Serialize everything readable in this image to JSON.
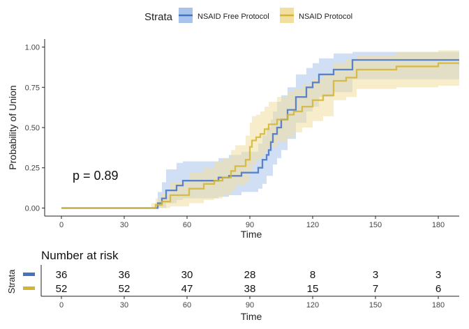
{
  "chart_data": {
    "type": "line",
    "subtype": "kaplan-meier",
    "legend": {
      "title": "Strata",
      "position": "top",
      "entries": [
        "NSAID Free Protocol",
        "NSAID Protocol"
      ]
    },
    "xlabel": "Time",
    "ylabel": "Probability of Union",
    "xlim": [
      -8,
      190
    ],
    "ylim": [
      -0.05,
      1.05
    ],
    "xticks": [
      0,
      30,
      60,
      90,
      120,
      150,
      180
    ],
    "yticks": [
      0.0,
      0.25,
      0.5,
      0.75,
      1.0
    ],
    "ytick_labels": [
      "0.00",
      "0.25",
      "0.50",
      "0.75",
      "1.00"
    ],
    "annotation": "p = 0.89",
    "series": [
      {
        "name": "NSAID Free Protocol",
        "color": "#4472c4",
        "fill": "#a9c4ea",
        "steps": [
          [
            0,
            0
          ],
          [
            46,
            0.03
          ],
          [
            48,
            0.06
          ],
          [
            50,
            0.11
          ],
          [
            55,
            0.14
          ],
          [
            58,
            0.17
          ],
          [
            75,
            0.19
          ],
          [
            80,
            0.2
          ],
          [
            86,
            0.22
          ],
          [
            94,
            0.25
          ],
          [
            96,
            0.3
          ],
          [
            98,
            0.33
          ],
          [
            99,
            0.36
          ],
          [
            100,
            0.41
          ],
          [
            101,
            0.46
          ],
          [
            103,
            0.5
          ],
          [
            105,
            0.55
          ],
          [
            108,
            0.61
          ],
          [
            112,
            0.69
          ],
          [
            117,
            0.75
          ],
          [
            120,
            0.78
          ],
          [
            123,
            0.83
          ],
          [
            130,
            0.86
          ],
          [
            139,
            0.92
          ],
          [
            190,
            0.92
          ]
        ],
        "lower": [
          [
            0,
            0
          ],
          [
            46,
            0
          ],
          [
            50,
            0.03
          ],
          [
            55,
            0.05
          ],
          [
            58,
            0.06
          ],
          [
            70,
            0.06
          ],
          [
            75,
            0.07
          ],
          [
            80,
            0.08
          ],
          [
            86,
            0.1
          ],
          [
            94,
            0.12
          ],
          [
            96,
            0.15
          ],
          [
            98,
            0.2
          ],
          [
            101,
            0.27
          ],
          [
            103,
            0.31
          ],
          [
            105,
            0.36
          ],
          [
            108,
            0.43
          ],
          [
            112,
            0.53
          ],
          [
            117,
            0.6
          ],
          [
            120,
            0.63
          ],
          [
            123,
            0.69
          ],
          [
            130,
            0.72
          ],
          [
            139,
            0.8
          ],
          [
            190,
            0.8
          ]
        ],
        "upper": [
          [
            0,
            0
          ],
          [
            46,
            0.1
          ],
          [
            48,
            0.16
          ],
          [
            50,
            0.24
          ],
          [
            55,
            0.28
          ],
          [
            58,
            0.29
          ],
          [
            75,
            0.31
          ],
          [
            80,
            0.33
          ],
          [
            86,
            0.35
          ],
          [
            94,
            0.4
          ],
          [
            96,
            0.45
          ],
          [
            98,
            0.5
          ],
          [
            100,
            0.55
          ],
          [
            101,
            0.6
          ],
          [
            103,
            0.66
          ],
          [
            105,
            0.7
          ],
          [
            108,
            0.75
          ],
          [
            112,
            0.83
          ],
          [
            117,
            0.87
          ],
          [
            120,
            0.9
          ],
          [
            123,
            0.93
          ],
          [
            130,
            0.96
          ],
          [
            139,
            0.97
          ],
          [
            190,
            0.97
          ]
        ]
      },
      {
        "name": "NSAID Protocol",
        "color": "#d4b531",
        "fill": "#f0dfa0",
        "steps": [
          [
            0,
            0
          ],
          [
            43,
            0.0
          ],
          [
            45,
            0.02
          ],
          [
            48,
            0.04
          ],
          [
            52,
            0.08
          ],
          [
            61,
            0.12
          ],
          [
            68,
            0.15
          ],
          [
            73,
            0.17
          ],
          [
            77,
            0.19
          ],
          [
            81,
            0.23
          ],
          [
            83,
            0.26
          ],
          [
            88,
            0.3
          ],
          [
            90,
            0.38
          ],
          [
            91,
            0.42
          ],
          [
            93,
            0.44
          ],
          [
            95,
            0.46
          ],
          [
            97,
            0.49
          ],
          [
            99,
            0.52
          ],
          [
            103,
            0.55
          ],
          [
            108,
            0.58
          ],
          [
            111,
            0.6
          ],
          [
            115,
            0.63
          ],
          [
            120,
            0.67
          ],
          [
            125,
            0.7
          ],
          [
            130,
            0.79
          ],
          [
            136,
            0.81
          ],
          [
            141,
            0.86
          ],
          [
            160,
            0.88
          ],
          [
            180,
            0.9
          ],
          [
            190,
            0.9
          ]
        ],
        "lower": [
          [
            0,
            0
          ],
          [
            43,
            0
          ],
          [
            52,
            0.01
          ],
          [
            61,
            0.03
          ],
          [
            68,
            0.05
          ],
          [
            73,
            0.06
          ],
          [
            77,
            0.08
          ],
          [
            81,
            0.11
          ],
          [
            83,
            0.14
          ],
          [
            88,
            0.16
          ],
          [
            90,
            0.23
          ],
          [
            91,
            0.27
          ],
          [
            93,
            0.3
          ],
          [
            95,
            0.32
          ],
          [
            97,
            0.35
          ],
          [
            99,
            0.38
          ],
          [
            103,
            0.41
          ],
          [
            108,
            0.44
          ],
          [
            111,
            0.47
          ],
          [
            115,
            0.5
          ],
          [
            120,
            0.54
          ],
          [
            125,
            0.57
          ],
          [
            130,
            0.67
          ],
          [
            136,
            0.69
          ],
          [
            141,
            0.74
          ],
          [
            160,
            0.75
          ],
          [
            180,
            0.76
          ],
          [
            190,
            0.76
          ]
        ],
        "upper": [
          [
            0,
            0
          ],
          [
            43,
            0.03
          ],
          [
            45,
            0.06
          ],
          [
            48,
            0.09
          ],
          [
            52,
            0.16
          ],
          [
            61,
            0.22
          ],
          [
            68,
            0.25
          ],
          [
            73,
            0.29
          ],
          [
            77,
            0.31
          ],
          [
            81,
            0.36
          ],
          [
            83,
            0.39
          ],
          [
            88,
            0.45
          ],
          [
            90,
            0.53
          ],
          [
            91,
            0.57
          ],
          [
            93,
            0.58
          ],
          [
            95,
            0.6
          ],
          [
            97,
            0.63
          ],
          [
            99,
            0.66
          ],
          [
            103,
            0.69
          ],
          [
            108,
            0.72
          ],
          [
            111,
            0.74
          ],
          [
            115,
            0.77
          ],
          [
            120,
            0.8
          ],
          [
            125,
            0.83
          ],
          [
            130,
            0.9
          ],
          [
            136,
            0.92
          ],
          [
            141,
            0.95
          ],
          [
            160,
            0.97
          ],
          [
            180,
            0.98
          ],
          [
            190,
            0.98
          ]
        ]
      }
    ],
    "risk_table": {
      "title": "Number at risk",
      "ylabel": "Strata",
      "xlabel": "Time",
      "times": [
        0,
        30,
        60,
        90,
        120,
        150,
        180
      ],
      "rows": [
        {
          "name": "NSAID Free Protocol",
          "counts": [
            "36",
            "36",
            "30",
            "28",
            "8",
            "3",
            "3"
          ]
        },
        {
          "name": "NSAID Protocol",
          "counts": [
            "52",
            "52",
            "47",
            "38",
            "15",
            "7",
            "6"
          ]
        }
      ]
    }
  }
}
